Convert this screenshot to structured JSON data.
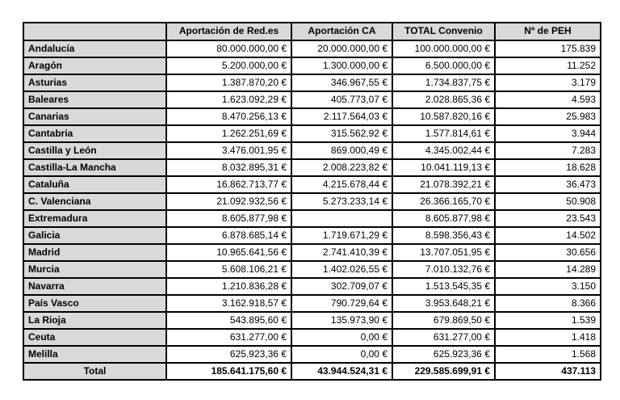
{
  "colors": {
    "header_bg": "#d9d9d9",
    "region_bg": "#d9d9d9",
    "cell_bg": "#ffffff",
    "border": "#000000",
    "text": "#000000"
  },
  "table": {
    "columns": {
      "region": "",
      "redes": "Aportación de Red.es",
      "ca": "Aportación CA",
      "total": "TOTAL Convenio",
      "peh": "Nº de PEH"
    },
    "rows": [
      {
        "region": "Andalucía",
        "redes": "80.000.000,00 €",
        "ca": "20.000.000,00 €",
        "total": "100.000.000,00 €",
        "peh": "175.839"
      },
      {
        "region": "Aragón",
        "redes": "5.200.000,00 €",
        "ca": "1.300.000,00 €",
        "total": "6.500.000,00 €",
        "peh": "11.252"
      },
      {
        "region": "Asturias",
        "redes": "1.387.870,20 €",
        "ca": "346.967,55 €",
        "total": "1.734.837,75 €",
        "peh": "3.179"
      },
      {
        "region": "Baleares",
        "redes": "1.623.092,29 €",
        "ca": "405.773,07 €",
        "total": "2.028.865,36 €",
        "peh": "4.593"
      },
      {
        "region": "Canarias",
        "redes": "8.470.256,13 €",
        "ca": "2.117.564,03 €",
        "total": "10.587.820,16 €",
        "peh": "25.983"
      },
      {
        "region": "Cantabria",
        "redes": "1.262.251,69 €",
        "ca": "315.562,92 €",
        "total": "1.577.814,61 €",
        "peh": "3.944"
      },
      {
        "region": "Castilla y León",
        "redes": "3.476.001,95 €",
        "ca": "869.000,49 €",
        "total": "4.345.002,44 €",
        "peh": "7.283"
      },
      {
        "region": "Castilla-La Mancha",
        "redes": "8.032.895,31 €",
        "ca": "2.008.223,82 €",
        "total": "10.041.119,13 €",
        "peh": "18.628"
      },
      {
        "region": "Cataluña",
        "redes": "16.862.713,77 €",
        "ca": "4.215.678,44 €",
        "total": "21.078.392,21 €",
        "peh": "36.473"
      },
      {
        "region": "C. Valenciana",
        "redes": "21.092.932,56 €",
        "ca": "5.273.233,14 €",
        "total": "26.366.165,70 €",
        "peh": "50.908"
      },
      {
        "region": "Extremadura",
        "redes": "8.605.877,98 €",
        "ca": "",
        "total": "8.605.877,98 €",
        "peh": "23.543"
      },
      {
        "region": "Galicia",
        "redes": "6.878.685,14 €",
        "ca": "1.719.671,29 €",
        "total": "8.598.356,43 €",
        "peh": "14.502"
      },
      {
        "region": "Madrid",
        "redes": "10.965.641,56 €",
        "ca": "2.741.410,39 €",
        "total": "13.707.051,95 €",
        "peh": "30.656"
      },
      {
        "region": "Murcia",
        "redes": "5.608.106,21 €",
        "ca": "1.402.026,55 €",
        "total": "7.010.132,76 €",
        "peh": "14.289"
      },
      {
        "region": "Navarra",
        "redes": "1.210.836,28 €",
        "ca": "302.709,07 €",
        "total": "1.513.545,35 €",
        "peh": "3.150"
      },
      {
        "region": "País Vasco",
        "redes": "3.162.918,57 €",
        "ca": "790.729,64 €",
        "total": "3.953.648,21 €",
        "peh": "8.366"
      },
      {
        "region": "La Rioja",
        "redes": "543.895,60 €",
        "ca": "135.973,90 €",
        "total": "679.869,50 €",
        "peh": "1.539"
      },
      {
        "region": "Ceuta",
        "redes": "631.277,00 €",
        "ca": "0,00 €",
        "total": "631.277,00 €",
        "peh": "1.418"
      },
      {
        "region": "Melilla",
        "redes": "625.923,36 €",
        "ca": "0,00 €",
        "total": "625.923,36 €",
        "peh": "1.568"
      }
    ],
    "total_row": {
      "label": "Total",
      "redes": "185.641.175,60 €",
      "ca": "43.944.524,31 €",
      "total": "229.585.699,91 €",
      "peh": "437.113"
    }
  }
}
